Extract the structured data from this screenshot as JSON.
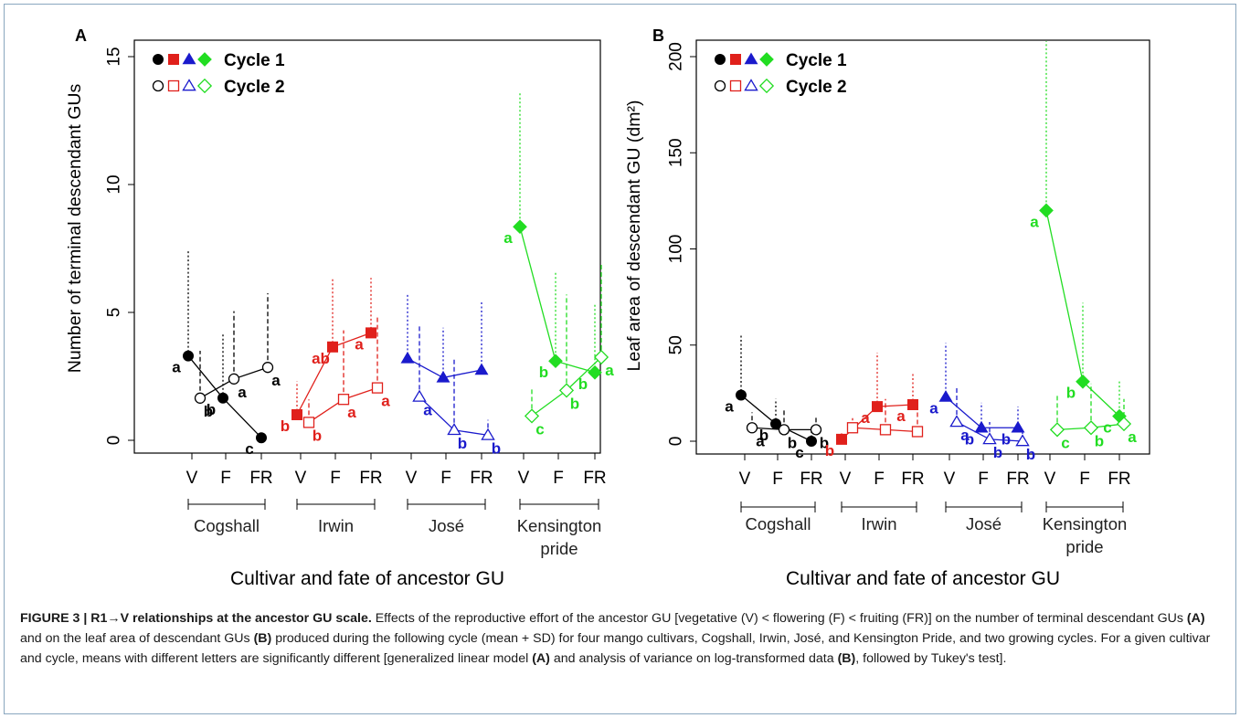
{
  "colors": {
    "Cogshall": "#000000",
    "Irwin": "#e0201b",
    "Jose": "#1a1acc",
    "Kensington": "#22dd22",
    "caption_text": "#1a1a1a",
    "frame": "#8aa7bf"
  },
  "chart_data": [
    {
      "type": "scatter",
      "panel_label": "A",
      "ylabel": "Number of terminal descendant GUs",
      "xlabel": "Cultivar and fate of ancestor GU",
      "ylim": [
        0,
        15
      ],
      "yticks": [
        0,
        5,
        10,
        15
      ],
      "categories": [
        "V",
        "F",
        "FR"
      ],
      "groups": [
        "Cogshall",
        "Irwin",
        "José",
        "Kensington pride"
      ],
      "legend": {
        "position": "top-left",
        "entries": [
          "Cycle 1",
          "Cycle 2"
        ]
      },
      "series": [
        {
          "cultivar": "Cogshall",
          "cycle": "Cycle 1",
          "color": "#000000",
          "marker": "circle",
          "values": [
            3.3,
            1.65,
            0.1
          ],
          "sd_top": [
            7.4,
            4.2,
            0.3
          ],
          "letters": [
            "a",
            "b",
            "c"
          ]
        },
        {
          "cultivar": "Cogshall",
          "cycle": "Cycle 2",
          "color": "#000000",
          "marker": "circle",
          "values": [
            1.65,
            2.4,
            2.85
          ],
          "sd_top": [
            3.5,
            5.05,
            5.75
          ],
          "letters": [
            "b",
            "a",
            "a"
          ]
        },
        {
          "cultivar": "Irwin",
          "cycle": "Cycle 1",
          "color": "#e0201b",
          "marker": "square",
          "values": [
            1.0,
            3.65,
            4.2
          ],
          "sd_top": [
            2.3,
            6.35,
            6.35
          ],
          "letters": [
            "b",
            "ab",
            "a"
          ]
        },
        {
          "cultivar": "Irwin",
          "cycle": "Cycle 2",
          "color": "#e0201b",
          "marker": "square",
          "values": [
            0.7,
            1.6,
            2.05
          ],
          "sd_top": [
            1.6,
            4.3,
            4.8
          ],
          "letters": [
            "b",
            "a",
            "a"
          ]
        },
        {
          "cultivar": "José",
          "cycle": "Cycle 1",
          "color": "#1a1acc",
          "marker": "triangle",
          "values": [
            3.2,
            2.45,
            2.75
          ],
          "sd_top": [
            5.75,
            4.4,
            5.4
          ],
          "letters": [
            "",
            "",
            ""
          ]
        },
        {
          "cultivar": "José",
          "cycle": "Cycle 2",
          "color": "#1a1acc",
          "marker": "triangle",
          "values": [
            1.7,
            0.4,
            0.2
          ],
          "sd_top": [
            4.5,
            3.2,
            0.8
          ],
          "letters": [
            "a",
            "b",
            "b"
          ]
        },
        {
          "cultivar": "Kensington pride",
          "cycle": "Cycle 1",
          "color": "#22dd22",
          "marker": "diamond",
          "values": [
            8.35,
            3.1,
            2.65
          ],
          "sd_top": [
            13.6,
            6.6,
            5.3
          ],
          "letters": [
            "a",
            "b",
            "b"
          ]
        },
        {
          "cultivar": "Kensington pride",
          "cycle": "Cycle 2",
          "color": "#22dd22",
          "marker": "diamond",
          "values": [
            0.95,
            1.95,
            3.25
          ],
          "sd_top": [
            2.0,
            5.7,
            6.95
          ],
          "letters": [
            "c",
            "b",
            "a"
          ]
        }
      ]
    },
    {
      "type": "scatter",
      "panel_label": "B",
      "ylabel": "Leaf area of descendant GU (dm²)",
      "xlabel": "Cultivar and fate of ancestor GU",
      "ylim": [
        0,
        200
      ],
      "yticks": [
        0,
        50,
        100,
        150,
        200
      ],
      "categories": [
        "V",
        "F",
        "FR"
      ],
      "groups": [
        "Cogshall",
        "Irwin",
        "José",
        "Kensington pride"
      ],
      "legend": {
        "position": "top-left",
        "entries": [
          "Cycle 1",
          "Cycle 2"
        ]
      },
      "series": [
        {
          "cultivar": "Cogshall",
          "cycle": "Cycle 1",
          "color": "#000000",
          "marker": "circle",
          "values": [
            24,
            9,
            0
          ],
          "sd_top": [
            55,
            22,
            8
          ],
          "letters": [
            "a",
            "b",
            "c"
          ]
        },
        {
          "cultivar": "Cogshall",
          "cycle": "Cycle 2",
          "color": "#000000",
          "marker": "circle",
          "values": [
            7,
            6,
            6
          ],
          "sd_top": [
            15,
            16,
            13
          ],
          "letters": [
            "a",
            "b",
            "b"
          ]
        },
        {
          "cultivar": "Irwin",
          "cycle": "Cycle 1",
          "color": "#e0201b",
          "marker": "square",
          "values": [
            1,
            18,
            19
          ],
          "sd_top": [
            5,
            46,
            36
          ],
          "letters": [
            "b",
            "a",
            "a"
          ]
        },
        {
          "cultivar": "Irwin",
          "cycle": "Cycle 2",
          "color": "#e0201b",
          "marker": "square",
          "values": [
            7,
            6,
            5
          ],
          "sd_top": [
            12,
            22,
            20
          ],
          "letters": [
            "",
            "",
            ""
          ]
        },
        {
          "cultivar": "José",
          "cycle": "Cycle 1",
          "color": "#1a1acc",
          "marker": "triangle",
          "values": [
            23,
            7,
            7
          ],
          "sd_top": [
            51,
            20,
            18
          ],
          "letters": [
            "a",
            "b",
            "b"
          ]
        },
        {
          "cultivar": "José",
          "cycle": "Cycle 2",
          "color": "#1a1acc",
          "marker": "triangle",
          "values": [
            10,
            1,
            0
          ],
          "sd_top": [
            28,
            10,
            5
          ],
          "letters": [
            "a",
            "b",
            "b"
          ]
        },
        {
          "cultivar": "Kensington pride",
          "cycle": "Cycle 1",
          "color": "#22dd22",
          "marker": "diamond",
          "values": [
            120,
            31,
            13
          ],
          "sd_top": [
            208,
            72,
            32
          ],
          "letters": [
            "a",
            "b",
            "c"
          ]
        },
        {
          "cultivar": "Kensington pride",
          "cycle": "Cycle 2",
          "color": "#22dd22",
          "marker": "diamond",
          "values": [
            6,
            7,
            9
          ],
          "sd_top": [
            24,
            30,
            22
          ],
          "letters": [
            "c",
            "b",
            "a"
          ]
        }
      ]
    }
  ],
  "caption": {
    "lead": "FIGURE 3 | R1→V relationships at the ancestor GU scale.",
    "t1": " Effects of the reproductive effort of the ancestor GU [vegetative (V) < flowering (F) < fruiting (FR)] on the number of terminal descendant GUs ",
    "a1": "(A)",
    "t2": " and on the leaf area of descendant GUs ",
    "b1": "(B)",
    "t3": " produced during the following cycle (mean + SD) for four mango cultivars, Cogshall, Irwin, José, and Kensington Pride, and two growing cycles. For a given cultivar and cycle, means with different letters are significantly different [generalized linear model ",
    "a2": "(A)",
    "t4": " and analysis of variance on log-transformed data ",
    "b2": "(B)",
    "t5": ", followed by Tukey's test]."
  }
}
